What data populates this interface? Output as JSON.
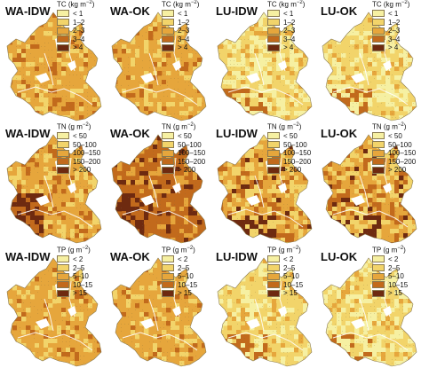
{
  "colors": {
    "ramp": [
      "#f6f0a2",
      "#f2d46a",
      "#e6a63c",
      "#c26a1c",
      "#6e2a10"
    ],
    "outline": "#ffffff"
  },
  "legends": [
    {
      "variable": "TC",
      "unit": "(kg m",
      "unit_exp": "−2",
      "unit_close": ")",
      "classes": [
        "< 1",
        "1–2",
        "2–3",
        "3–4",
        "> 4"
      ]
    },
    {
      "variable": "TN",
      "unit": "(g m",
      "unit_exp": "−2",
      "unit_close": ")",
      "classes": [
        "< 50",
        "50–100",
        "100–150",
        "150–200",
        "> 200"
      ]
    },
    {
      "variable": "TP",
      "unit": "(g m",
      "unit_exp": "−2",
      "unit_close": ")",
      "classes": [
        "< 2",
        "2–5",
        "5–10",
        "10–15",
        "> 15"
      ]
    }
  ],
  "methods": [
    "WA-IDW",
    "WA-OK",
    "LU-IDW",
    "LU-OK"
  ],
  "panels": [
    {
      "row": 0,
      "col": 0,
      "method": "WA-IDW",
      "variable": "TC",
      "dominant_class": 2,
      "pattern": "uniform-medium"
    },
    {
      "row": 0,
      "col": 1,
      "method": "WA-OK",
      "variable": "TC",
      "dominant_class": 2,
      "pattern": "uniform-medium"
    },
    {
      "row": 0,
      "col": 2,
      "method": "LU-IDW",
      "variable": "TC",
      "dominant_class": 1,
      "pattern": "light-patchy"
    },
    {
      "row": 0,
      "col": 3,
      "method": "LU-OK",
      "variable": "TC",
      "dominant_class": 1,
      "pattern": "light-patchy"
    },
    {
      "row": 1,
      "col": 0,
      "method": "WA-IDW",
      "variable": "TN",
      "dominant_class": 2,
      "pattern": "dark-southwest"
    },
    {
      "row": 1,
      "col": 1,
      "method": "WA-OK",
      "variable": "TN",
      "dominant_class": 3,
      "pattern": "dark-southwest"
    },
    {
      "row": 1,
      "col": 2,
      "method": "LU-IDW",
      "variable": "TN",
      "dominant_class": 2,
      "pattern": "mixed"
    },
    {
      "row": 1,
      "col": 3,
      "method": "LU-OK",
      "variable": "TN",
      "dominant_class": 2,
      "pattern": "mixed"
    },
    {
      "row": 2,
      "col": 0,
      "method": "WA-IDW",
      "variable": "TP",
      "dominant_class": 2,
      "pattern": "uniform-medium"
    },
    {
      "row": 2,
      "col": 1,
      "method": "WA-OK",
      "variable": "TP",
      "dominant_class": 2,
      "pattern": "uniform-medium"
    },
    {
      "row": 2,
      "col": 2,
      "method": "LU-IDW",
      "variable": "TP",
      "dominant_class": 1,
      "pattern": "light-patchy"
    },
    {
      "row": 2,
      "col": 3,
      "method": "LU-OK",
      "variable": "TP",
      "dominant_class": 1,
      "pattern": "light-patchy"
    }
  ]
}
